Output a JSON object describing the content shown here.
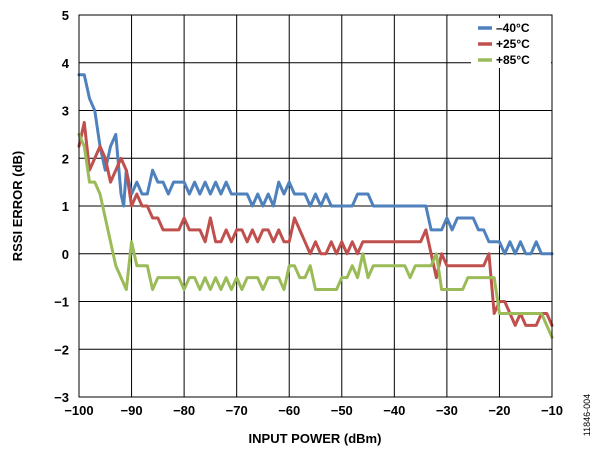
{
  "figure_code": "11846-004",
  "chart_data": {
    "type": "line",
    "xlabel": "INPUT POWER (dBm)",
    "ylabel": "RSSI ERROR (dB)",
    "xlim": [
      -100,
      -10
    ],
    "ylim": [
      -3,
      5
    ],
    "x_ticks": [
      "−100",
      "−90",
      "−80",
      "−70",
      "−60",
      "−50",
      "−40",
      "−30",
      "−20",
      "−10"
    ],
    "y_ticks": [
      "−3",
      "−2",
      "−1",
      "0",
      "1",
      "2",
      "3",
      "4",
      "5"
    ],
    "grid": true,
    "legend_position": "top-right",
    "series": [
      {
        "name": "–40°C",
        "color": "#4f81bd",
        "x": [
          -100,
          -99,
          -98,
          -97,
          -96,
          -95,
          -94,
          -93,
          -92,
          -91.5,
          -91,
          -90,
          -89,
          -88,
          -87,
          -86,
          -85,
          -84,
          -83,
          -82,
          -81,
          -80,
          -79,
          -78,
          -77,
          -76,
          -75,
          -74,
          -73,
          -72,
          -71,
          -70,
          -69,
          -68,
          -67,
          -66,
          -65,
          -64,
          -63,
          -62,
          -61,
          -60,
          -59,
          -58,
          -57,
          -56,
          -55,
          -54,
          -53,
          -52,
          -51,
          -50,
          -49,
          -48,
          -47,
          -46,
          -45,
          -44,
          -43,
          -42,
          -41,
          -40,
          -39,
          -38,
          -37,
          -36,
          -35,
          -34,
          -33,
          -32,
          -31,
          -30,
          -29,
          -28,
          -27,
          -26,
          -25,
          -24,
          -23,
          -22,
          -21,
          -20,
          -19,
          -18,
          -17,
          -16,
          -15,
          -14,
          -13,
          -12,
          -11,
          -10
        ],
        "y": [
          3.75,
          3.75,
          3.25,
          3.0,
          2.25,
          1.75,
          2.25,
          2.5,
          1.25,
          1.0,
          1.75,
          1.25,
          1.5,
          1.25,
          1.25,
          1.75,
          1.5,
          1.5,
          1.25,
          1.5,
          1.5,
          1.5,
          1.25,
          1.5,
          1.25,
          1.5,
          1.25,
          1.5,
          1.25,
          1.5,
          1.25,
          1.25,
          1.25,
          1.25,
          1.0,
          1.25,
          1.0,
          1.25,
          1.0,
          1.5,
          1.25,
          1.5,
          1.25,
          1.25,
          1.25,
          1.0,
          1.25,
          1.0,
          1.25,
          1.0,
          1.0,
          1.0,
          1.0,
          1.0,
          1.25,
          1.25,
          1.25,
          1.0,
          1.0,
          1.0,
          1.0,
          1.0,
          1.0,
          1.0,
          1.0,
          1.0,
          1.0,
          1.0,
          0.5,
          0.5,
          0.5,
          0.75,
          0.5,
          0.75,
          0.75,
          0.75,
          0.75,
          0.5,
          0.5,
          0.25,
          0.25,
          0.25,
          0.0,
          0.25,
          0.0,
          0.25,
          0.0,
          0.0,
          0.25,
          0.0,
          0.0,
          0.0
        ]
      },
      {
        "name": "+25°C",
        "color": "#c0504d",
        "x": [
          -100,
          -99,
          -98,
          -97,
          -96,
          -95,
          -94,
          -93,
          -92,
          -91,
          -90,
          -89,
          -88,
          -87,
          -86,
          -85,
          -84,
          -83,
          -82,
          -81,
          -80,
          -79,
          -78,
          -77,
          -76,
          -75,
          -74,
          -73,
          -72,
          -71,
          -70,
          -69,
          -68,
          -67,
          -66,
          -65,
          -64,
          -63,
          -62,
          -61,
          -60,
          -59,
          -58,
          -57,
          -56,
          -55,
          -54,
          -53,
          -52,
          -51,
          -50,
          -49,
          -48,
          -47,
          -46,
          -45,
          -44,
          -43,
          -42,
          -41,
          -40,
          -39,
          -38,
          -37,
          -36,
          -35,
          -34,
          -33,
          -32,
          -31,
          -30,
          -29,
          -28,
          -27,
          -26,
          -25,
          -24,
          -23,
          -22,
          -21,
          -20,
          -19,
          -18,
          -17,
          -16,
          -15,
          -14,
          -13,
          -12,
          -11,
          -10
        ],
        "y": [
          2.25,
          2.75,
          1.75,
          2.0,
          2.25,
          2.0,
          1.5,
          1.75,
          2.0,
          1.75,
          1.0,
          1.25,
          1.0,
          1.0,
          0.75,
          0.75,
          0.5,
          0.5,
          0.5,
          0.5,
          0.75,
          0.5,
          0.5,
          0.5,
          0.25,
          0.75,
          0.25,
          0.25,
          0.5,
          0.25,
          0.5,
          0.5,
          0.25,
          0.5,
          0.25,
          0.5,
          0.5,
          0.25,
          0.5,
          0.25,
          0.25,
          0.75,
          0.5,
          0.25,
          0.0,
          0.25,
          0.0,
          0.0,
          0.25,
          0.0,
          0.25,
          0.0,
          0.25,
          0.0,
          0.25,
          0.25,
          0.25,
          0.25,
          0.25,
          0.25,
          0.25,
          0.25,
          0.25,
          0.25,
          0.25,
          0.25,
          0.5,
          0.0,
          -0.5,
          0.0,
          -0.25,
          -0.25,
          -0.25,
          -0.25,
          -0.25,
          -0.25,
          -0.25,
          -0.25,
          0.0,
          -1.25,
          -1.0,
          -1.0,
          -1.25,
          -1.5,
          -1.25,
          -1.5,
          -1.5,
          -1.5,
          -1.25,
          -1.25,
          -1.5
        ]
      },
      {
        "name": "+85°C",
        "color": "#9bbb59",
        "x": [
          -100,
          -99,
          -98,
          -97,
          -96,
          -95,
          -94,
          -93,
          -92,
          -91,
          -90,
          -89,
          -88,
          -87,
          -86,
          -85,
          -84,
          -83,
          -82,
          -81,
          -80,
          -79,
          -78,
          -77,
          -76,
          -75,
          -74,
          -73,
          -72,
          -71,
          -70,
          -69,
          -68,
          -67,
          -66,
          -65,
          -64,
          -63,
          -62,
          -61,
          -60,
          -59,
          -58,
          -57,
          -56,
          -55,
          -54,
          -53,
          -52,
          -51,
          -50,
          -49,
          -48,
          -47,
          -46,
          -45,
          -44,
          -43,
          -42,
          -41,
          -40,
          -39,
          -38,
          -37,
          -36,
          -35,
          -34,
          -33,
          -32,
          -31,
          -30,
          -29,
          -28,
          -27,
          -26,
          -25,
          -24,
          -23,
          -22,
          -21,
          -20,
          -19,
          -18,
          -17,
          -16,
          -15,
          -14,
          -13,
          -12,
          -11,
          -10
        ],
        "y": [
          2.5,
          2.25,
          1.5,
          1.5,
          1.25,
          0.75,
          0.25,
          -0.25,
          -0.5,
          -0.75,
          0.25,
          -0.25,
          -0.25,
          -0.25,
          -0.75,
          -0.5,
          -0.5,
          -0.5,
          -0.5,
          -0.5,
          -0.75,
          -0.5,
          -0.5,
          -0.75,
          -0.5,
          -0.75,
          -0.5,
          -0.75,
          -0.5,
          -0.75,
          -0.5,
          -0.75,
          -0.5,
          -0.5,
          -0.5,
          -0.75,
          -0.5,
          -0.5,
          -0.5,
          -0.75,
          -0.25,
          -0.25,
          -0.5,
          -0.5,
          -0.25,
          -0.75,
          -0.75,
          -0.75,
          -0.75,
          -0.75,
          -0.5,
          -0.5,
          -0.25,
          -0.5,
          0.0,
          -0.5,
          -0.25,
          -0.25,
          -0.25,
          -0.25,
          -0.25,
          -0.25,
          -0.25,
          -0.5,
          -0.25,
          -0.25,
          -0.25,
          -0.25,
          0.0,
          -0.75,
          -0.75,
          -0.75,
          -0.75,
          -0.75,
          -0.5,
          -0.5,
          -0.5,
          -0.5,
          -0.5,
          -0.5,
          -1.25,
          -1.25,
          -1.25,
          -1.25,
          -1.25,
          -1.25,
          -1.25,
          -1.25,
          -1.25,
          -1.5,
          -1.75
        ]
      }
    ]
  }
}
